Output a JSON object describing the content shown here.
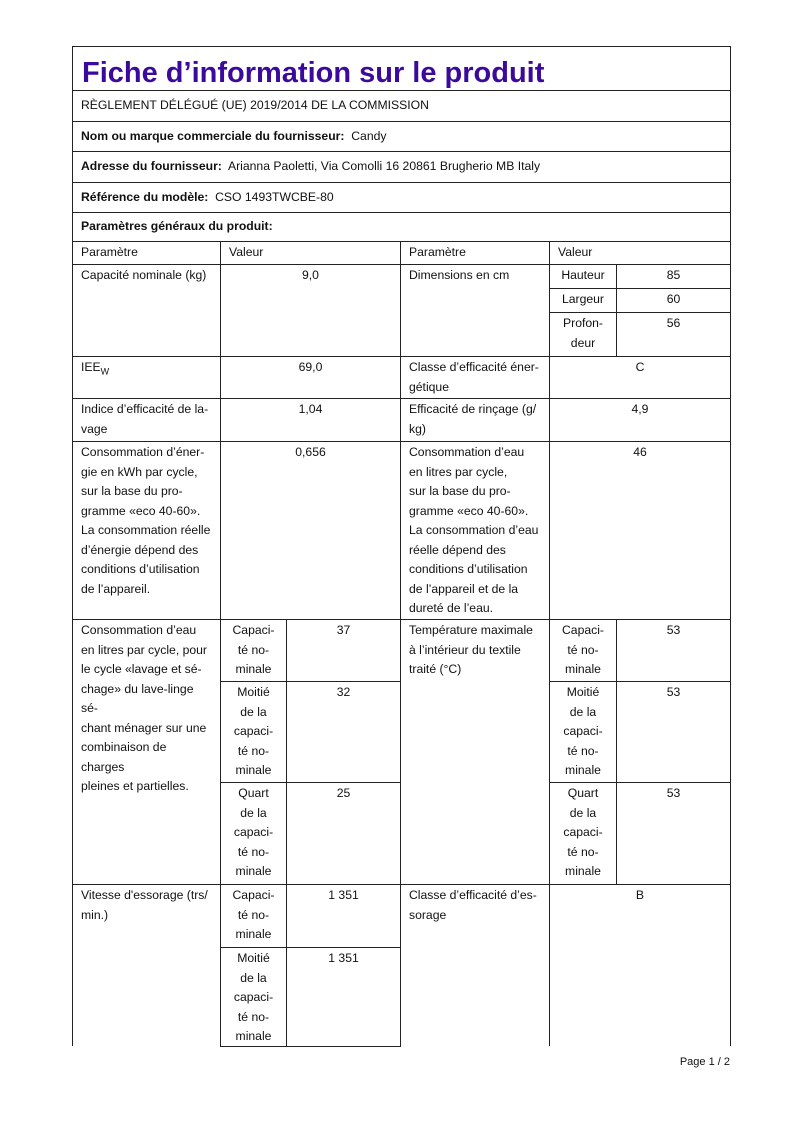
{
  "title": "Fiche d’information sur le produit",
  "regulation": "RÈGLEMENT DÉLÉGUÉ (UE) 2019/2014 DE LA COMMISSION",
  "supplier_name": {
    "label": "Nom ou marque commerciale du fournisseur:",
    "value": "Candy"
  },
  "supplier_address": {
    "label": "Adresse du fournisseur:",
    "value": "Arianna Paoletti, Via Comolli 16 20861 Brugherio MB Italy"
  },
  "model_ref": {
    "label": "Référence du modèle:",
    "value": "CSO 1493TWCBE-80"
  },
  "general_params": "Paramètres généraux du produit:",
  "headers": {
    "param": "Paramètre",
    "value": "Valeur"
  },
  "rows": {
    "capacity": {
      "label": "Capacité nominale (kg)",
      "value": "9,0"
    },
    "dimensions": {
      "label": "Dimensions en cm",
      "height_label": "Hauteur",
      "height": "85",
      "width_label": "Largeur",
      "width": "60",
      "depth_label": "Profon-\ndeur",
      "depth": "56"
    },
    "iee": {
      "label": "IEE",
      "sub": "W",
      "value": "69,0"
    },
    "energy_class": {
      "label": "Classe d’efficacité éner-\ngétique",
      "value": "C"
    },
    "wash_index": {
      "label": "Indice d’efficacité de la-\nvage",
      "value": "1,04"
    },
    "rinse": {
      "label": "Efficacité de rinçage (g/\nkg)",
      "value": "4,9"
    },
    "energy": {
      "label": "Consommation d’éner-\ngie en kWh par cycle,\nsur la base du pro-\ngramme «eco 40-60».\nLa consommation réelle\nd’énergie dépend des\nconditions d’utilisation\nde l’appareil.",
      "value": "0,656"
    },
    "water": {
      "label": "Consommation d’eau\nen litres par cycle,\nsur la base du pro-\ngramme «eco 40-60».\nLa consommation d’eau\nréelle dépend des\nconditions d’utilisation\nde l’appareil et de la\ndureté de l’eau.",
      "value": "46"
    },
    "water_wd": {
      "label": "Consommation d’eau\nen litres par cycle, pour\nle cycle «lavage et sé-\nchage» du lave-linge sé-\nchant ménager sur une\ncombinaison de charges\npleines et partielles.",
      "values": [
        "37",
        "32",
        "25"
      ]
    },
    "temp": {
      "label": "Température maximale\nà l’intérieur du textile\ntraité (°C)",
      "values": [
        "53",
        "53",
        "53"
      ]
    },
    "load_labels": [
      "Capaci-\nté no-\nminale",
      "Moitié\nde la\ncapaci-\nté no-\nminale",
      "Quart\nde la\ncapaci-\nté no-\nminale"
    ],
    "spin": {
      "label": "Vitesse d'essorage (trs/\nmin.)",
      "values": [
        "1 351",
        "1 351"
      ]
    },
    "spin_class": {
      "label": "Classe d’efficacité d’es-\nsorage",
      "value": "B"
    }
  },
  "page": "Page 1 / 2"
}
